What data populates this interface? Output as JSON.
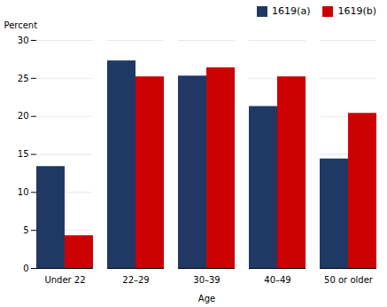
{
  "chart_data": {
    "type": "bar",
    "categories": [
      "Under 22",
      "22–29",
      "30–39",
      "40–49",
      "50 or older"
    ],
    "series": [
      {
        "name": "1619(a)",
        "color": "#1f3864",
        "values": [
          13.4,
          27.3,
          25.3,
          21.3,
          14.4
        ]
      },
      {
        "name": "1619(b)",
        "color": "#cc0000",
        "values": [
          4.3,
          25.2,
          26.4,
          25.2,
          20.4
        ]
      }
    ],
    "xlabel": "Age",
    "ylabel": "Percent",
    "ylim": [
      0,
      30
    ],
    "yticks": [
      0,
      5,
      10,
      15,
      20,
      25,
      30
    ],
    "grid": true,
    "legend": "upper right"
  }
}
